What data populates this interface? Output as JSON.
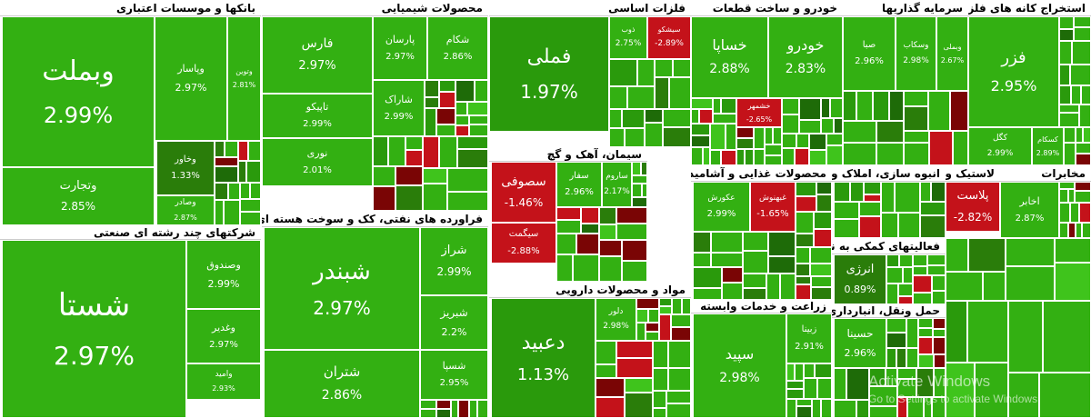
{
  "sectors": [
    {
      "title": "بانکها و موسسات اعتباری",
      "tiles": [
        {
          "label": "وبملت",
          "change": "2.99%"
        },
        {
          "label": "وتجارت",
          "change": "2.85%"
        },
        {
          "label": "وپاسار",
          "change": "2.97%"
        },
        {
          "label": "وتوین",
          "change": "2.81%"
        },
        {
          "label": "وخاور",
          "change": "1.33%"
        },
        {
          "label": "وصادر",
          "change": "2.87%"
        }
      ]
    },
    {
      "title": "شرکتهای چند رشته ای صنعتی",
      "tiles": [
        {
          "label": "شستا",
          "change": "2.97%"
        },
        {
          "label": "وصندوق",
          "change": "2.99%"
        },
        {
          "label": "وغدیر",
          "change": "2.97%"
        },
        {
          "label": "وامید",
          "change": "2.93%"
        }
      ]
    },
    {
      "title": "محصولات شیمیایی",
      "tiles": [
        {
          "label": "فارس",
          "change": "2.97%"
        },
        {
          "label": "پارسان",
          "change": "2.97%"
        },
        {
          "label": "شکام",
          "change": "2.86%"
        },
        {
          "label": "تاپیکو",
          "change": "2.99%"
        },
        {
          "label": "نوری",
          "change": "2.01%"
        },
        {
          "label": "شاراک",
          "change": "2.99%"
        }
      ]
    },
    {
      "title": "فراورده های نفتی، کک و سوخت هسته ای",
      "tiles": [
        {
          "label": "شبندر",
          "change": "2.97%"
        },
        {
          "label": "شتران",
          "change": "2.86%"
        },
        {
          "label": "شراز",
          "change": "2.99%"
        },
        {
          "label": "شبریز",
          "change": "2.2%"
        },
        {
          "label": "شسپا",
          "change": "2.95%"
        }
      ]
    },
    {
      "title": "فلزات اساسی",
      "tiles": [
        {
          "label": "فملی",
          "change": "1.97%"
        },
        {
          "label": "ذوب",
          "change": "2.75%"
        },
        {
          "label": "سیشکو",
          "change": "-2.89%"
        }
      ]
    },
    {
      "title": "سیمان، آهک و گچ",
      "tiles": [
        {
          "label": "سصوفی",
          "change": "-1.46%"
        },
        {
          "label": "سیگمت",
          "change": "-2.88%"
        },
        {
          "label": "سفار",
          "change": "2.96%"
        },
        {
          "label": "ساروم",
          "change": "2.17%"
        }
      ]
    },
    {
      "title": "مواد و محصولات دارویی",
      "tiles": [
        {
          "label": "دعبید",
          "change": "1.13%"
        },
        {
          "label": "دلور",
          "change": "2.98%"
        }
      ]
    },
    {
      "title": "خودرو و ساخت قطعات",
      "tiles": [
        {
          "label": "خساپا",
          "change": "2.88%"
        },
        {
          "label": "خودرو",
          "change": "2.83%"
        },
        {
          "label": "خشمهر",
          "change": "-2.65%"
        }
      ]
    },
    {
      "title": "سرمایه گذاریها",
      "tiles": [
        {
          "label": "صبا",
          "change": "2.96%"
        },
        {
          "label": "وسکاب",
          "change": "2.98%"
        },
        {
          "label": "وبملی",
          "change": "2.67%"
        }
      ]
    },
    {
      "title": "استخراج کانه های فلزی",
      "tiles": [
        {
          "label": "فزر",
          "change": "2.95%"
        },
        {
          "label": "کگل",
          "change": "2.99%"
        },
        {
          "label": "کسکام",
          "change": "2.89%"
        }
      ]
    },
    {
      "title": "محصولات غذایی و آشامیدنی به جز قند و شکر",
      "tiles": [
        {
          "label": "عکورش",
          "change": "2.99%"
        },
        {
          "label": "غبهنوش",
          "change": "-1.65%"
        }
      ]
    },
    {
      "title": "انبوه سازی، املاک و مستغلات",
      "tiles": []
    },
    {
      "title": "لاستیک و پلاستیک",
      "tiles": [
        {
          "label": "پلاست",
          "change": "-2.82%"
        }
      ]
    },
    {
      "title": "مخابرات",
      "tiles": [
        {
          "label": "اخابر",
          "change": "2.87%"
        }
      ]
    },
    {
      "title": "فعالیتهای کمکی به نهادهای مالی واسط",
      "tiles": [
        {
          "label": "انرژی",
          "change": "0.89%"
        }
      ]
    },
    {
      "title": "زراعت و خدمات وابسته",
      "tiles": [
        {
          "label": "سپید",
          "change": "2.98%"
        },
        {
          "label": "زبینا",
          "change": "2.91%"
        }
      ]
    },
    {
      "title": "حمل ونقل، انبارداری و ارتباطات",
      "tiles": [
        {
          "label": "حسینا",
          "change": "2.96%"
        }
      ]
    }
  ],
  "watermark": {
    "title": "Activate Windows",
    "subtitle": "Go to Settings to activate Windows."
  }
}
